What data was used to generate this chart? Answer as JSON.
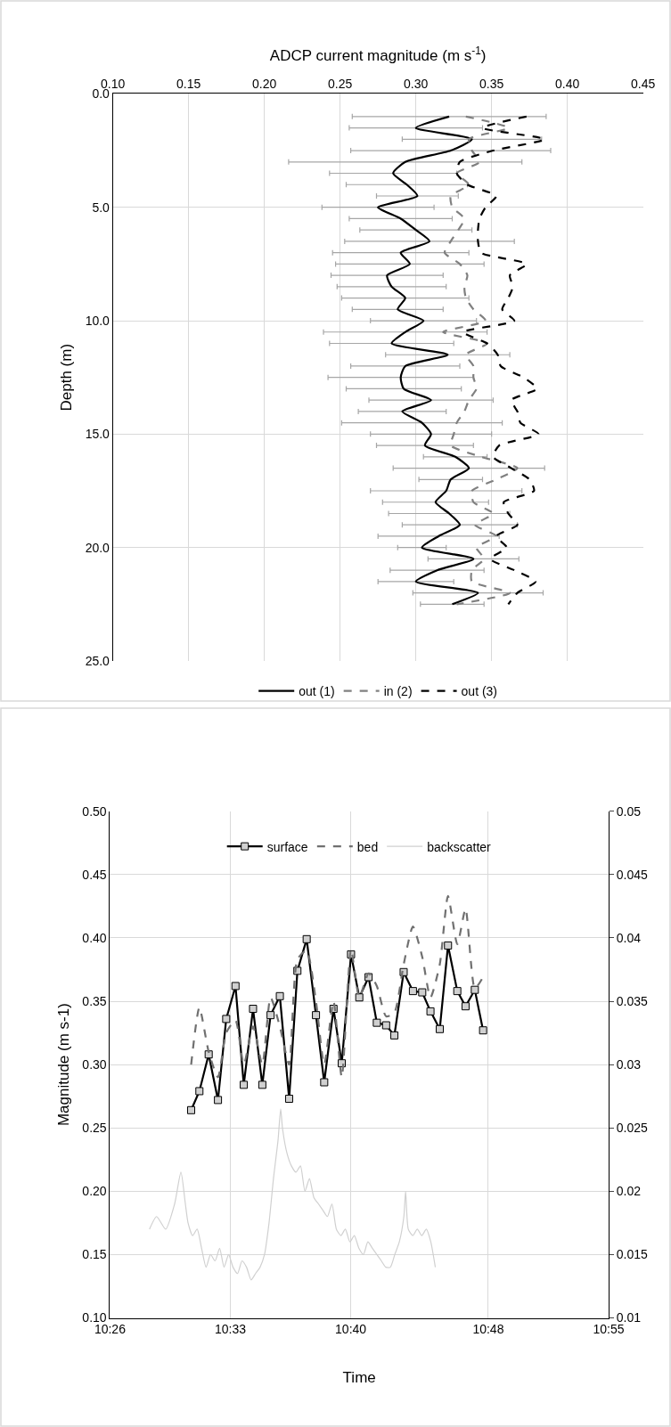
{
  "chart_data": [
    {
      "type": "line",
      "xlabel": "ADCP current magnitude (m s$^{-1}$)",
      "ylabel": "Depth (m)",
      "xlim": [
        0.1,
        0.45
      ],
      "xticks": [
        {
          "value": 0.1,
          "label": "0.10"
        },
        {
          "value": 0.15,
          "label": "0.15"
        },
        {
          "value": 0.2,
          "label": "0.20"
        },
        {
          "value": 0.25,
          "label": "0.25"
        },
        {
          "value": 0.3,
          "label": "0.30"
        },
        {
          "value": 0.35,
          "label": "0.35"
        },
        {
          "value": 0.4,
          "label": "0.40"
        },
        {
          "value": 0.45,
          "label": "0.45"
        }
      ],
      "ylim": [
        25,
        0
      ],
      "yticks": [
        {
          "value": 0,
          "label": "0.0"
        },
        {
          "value": 5,
          "label": "5.0"
        },
        {
          "value": 10,
          "label": "10.0"
        },
        {
          "value": 15,
          "label": "15.0"
        },
        {
          "value": 20,
          "label": "20.0"
        },
        {
          "value": 25,
          "label": "25.0"
        }
      ],
      "grid": true,
      "legend": "bottom",
      "marker": "none",
      "series": [
        {
          "name": "out (1)",
          "color": "#000000",
          "line_style": "solid",
          "x": [
            0.322,
            0.3,
            0.337,
            0.323,
            0.293,
            0.285,
            0.294,
            0.301,
            0.275,
            0.29,
            0.3,
            0.309,
            0.29,
            0.296,
            0.281,
            0.284,
            0.293,
            0.288,
            0.305,
            0.293,
            0.284,
            0.321,
            0.293,
            0.29,
            0.292,
            0.31,
            0.291,
            0.304,
            0.31,
            0.306,
            0.326,
            0.335,
            0.323,
            0.32,
            0.313,
            0.322,
            0.329,
            0.315,
            0.304,
            0.338,
            0.314,
            0.3,
            0.341,
            0.324
          ],
          "values": [
            1.0,
            1.5,
            2.0,
            2.5,
            3.0,
            3.5,
            4.0,
            4.5,
            5.0,
            5.5,
            6.0,
            6.5,
            7.0,
            7.5,
            8.0,
            8.5,
            9.0,
            9.5,
            10.0,
            10.5,
            11.0,
            11.5,
            12.0,
            12.5,
            13.0,
            13.5,
            14.0,
            14.5,
            15.0,
            15.5,
            16.0,
            16.5,
            17.0,
            17.5,
            18.0,
            18.5,
            19.0,
            19.5,
            20.0,
            20.5,
            21.0,
            21.5,
            22.0,
            22.5
          ],
          "xerrors": [
            0.064,
            0.044,
            0.046,
            0.066,
            0.077,
            0.042,
            0.04,
            0.027,
            0.037,
            0.034,
            0.037,
            0.056,
            0.045,
            0.049,
            0.037,
            0.036,
            0.042,
            0.03,
            0.035,
            0.054,
            0.041,
            0.041,
            0.036,
            0.048,
            0.038,
            0.041,
            0.029,
            0.053,
            0.04,
            0.032,
            0.021,
            0.05,
            0.021,
            0.05,
            0.035,
            0.04,
            0.038,
            0.04,
            0.016,
            0.03,
            0.031,
            0.025,
            0.043,
            0.021
          ]
        },
        {
          "name": "in (2)",
          "color": "#808080",
          "line_style": "dashed",
          "x": [
            0.333,
            0.361,
            0.335,
            0.337,
            0.342,
            0.327,
            0.335,
            0.323,
            0.324,
            0.332,
            0.328,
            0.323,
            0.319,
            0.329,
            0.334,
            0.332,
            0.333,
            0.338,
            0.346,
            0.318,
            0.347,
            0.333,
            0.338,
            0.338,
            0.34,
            0.335,
            0.332,
            0.327,
            0.325,
            0.323,
            0.343,
            0.367,
            0.353,
            0.337,
            0.338,
            0.351,
            0.339,
            0.353,
            0.34,
            0.345,
            0.337,
            0.337,
            0.362,
            0.327
          ],
          "values": [
            1.0,
            1.5,
            2.0,
            2.5,
            3.0,
            3.5,
            4.0,
            4.5,
            5.0,
            5.5,
            6.0,
            6.5,
            7.0,
            7.5,
            8.0,
            8.5,
            9.0,
            9.5,
            10.0,
            10.5,
            11.0,
            11.5,
            12.0,
            12.5,
            13.0,
            13.5,
            14.0,
            14.5,
            15.0,
            15.5,
            16.0,
            16.5,
            17.0,
            17.5,
            18.0,
            18.5,
            19.0,
            19.5,
            20.0,
            20.5,
            21.0,
            21.5,
            22.0,
            22.5
          ]
        },
        {
          "name": "out (3)",
          "color": "#000000",
          "line_style": "dashed",
          "x": [
            0.373,
            0.344,
            0.385,
            0.351,
            0.329,
            0.327,
            0.334,
            0.353,
            0.346,
            0.342,
            0.341,
            0.341,
            0.343,
            0.373,
            0.362,
            0.364,
            0.361,
            0.357,
            0.365,
            0.331,
            0.347,
            0.354,
            0.356,
            0.371,
            0.38,
            0.363,
            0.367,
            0.369,
            0.381,
            0.355,
            0.351,
            0.363,
            0.375,
            0.378,
            0.358,
            0.361,
            0.367,
            0.353,
            0.36,
            0.349,
            0.365,
            0.379,
            0.367,
            0.361
          ],
          "values": [
            1.0,
            1.5,
            2.0,
            2.5,
            3.0,
            3.5,
            4.0,
            4.5,
            5.0,
            5.5,
            6.0,
            6.5,
            7.0,
            7.5,
            8.0,
            8.5,
            9.0,
            9.5,
            10.0,
            10.5,
            11.0,
            11.5,
            12.0,
            12.5,
            13.0,
            13.5,
            14.0,
            14.5,
            15.0,
            15.5,
            16.0,
            16.5,
            17.0,
            17.5,
            18.0,
            18.5,
            19.0,
            19.5,
            20.0,
            20.5,
            21.0,
            21.5,
            22.0,
            22.5
          ]
        }
      ]
    },
    {
      "type": "line",
      "xlabel": "Time",
      "ylabel": "Magnitude (m s-1)",
      "xlim": [
        10.4333,
        10.9167
      ],
      "xticks": [
        {
          "value": 10.4333,
          "label": "10:26"
        },
        {
          "value": 10.55,
          "label": "10:33"
        },
        {
          "value": 10.6667,
          "label": "10:40"
        },
        {
          "value": 10.8,
          "label": "10:48"
        },
        {
          "value": 10.9167,
          "label": "10:55"
        }
      ],
      "ylim": [
        0.1,
        0.5
      ],
      "yticks": [
        {
          "value": 0.1,
          "label": "0.10"
        },
        {
          "value": 0.15,
          "label": "0.15"
        },
        {
          "value": 0.2,
          "label": "0.20"
        },
        {
          "value": 0.25,
          "label": "0.25"
        },
        {
          "value": 0.3,
          "label": "0.30"
        },
        {
          "value": 0.35,
          "label": "0.35"
        },
        {
          "value": 0.4,
          "label": "0.40"
        },
        {
          "value": 0.45,
          "label": "0.45"
        },
        {
          "value": 0.5,
          "label": "0.50"
        }
      ],
      "y2lim": [
        0.01,
        0.05
      ],
      "y2ticks": [
        0.01,
        0.015,
        0.02,
        0.025,
        0.03,
        0.035,
        0.04,
        0.045,
        0.05
      ],
      "grid": true,
      "legend": "top",
      "series": [
        {
          "name": "surface",
          "color": "#000000",
          "marker": "square",
          "line_style": "solid",
          "x": [
            10.512,
            10.52,
            10.529,
            10.538,
            10.546,
            10.555,
            10.563,
            10.572,
            10.581,
            10.589,
            10.598,
            10.607,
            10.615,
            10.624,
            10.633,
            10.641,
            10.65,
            10.658,
            10.667,
            10.675,
            10.684,
            10.692,
            10.701,
            10.709,
            10.718,
            10.727,
            10.736,
            10.744,
            10.753,
            10.761,
            10.77,
            10.778,
            10.787,
            10.795
          ],
          "values": [
            0.264,
            0.279,
            0.308,
            0.272,
            0.336,
            0.362,
            0.284,
            0.344,
            0.284,
            0.339,
            0.354,
            0.273,
            0.374,
            0.399,
            0.339,
            0.286,
            0.344,
            0.301,
            0.387,
            0.353,
            0.369,
            0.333,
            0.331,
            0.323,
            0.373,
            0.358,
            0.357,
            0.342,
            0.328,
            0.394,
            0.358,
            0.346,
            0.359,
            0.327
          ]
        },
        {
          "name": "bed",
          "color": "#707070",
          "marker": "none",
          "line_style": "dashed",
          "x": [
            10.512,
            10.52,
            10.529,
            10.538,
            10.546,
            10.555,
            10.563,
            10.572,
            10.581,
            10.589,
            10.598,
            10.607,
            10.615,
            10.624,
            10.633,
            10.641,
            10.65,
            10.658,
            10.667,
            10.675,
            10.684,
            10.692,
            10.701,
            10.709,
            10.718,
            10.727,
            10.736,
            10.744,
            10.753,
            10.761,
            10.77,
            10.778,
            10.787,
            10.795
          ],
          "values": [
            0.3,
            0.345,
            0.31,
            0.29,
            0.325,
            0.335,
            0.3,
            0.33,
            0.3,
            0.353,
            0.33,
            0.3,
            0.383,
            0.39,
            0.35,
            0.3,
            0.35,
            0.29,
            0.391,
            0.353,
            0.372,
            0.362,
            0.338,
            0.341,
            0.379,
            0.409,
            0.385,
            0.353,
            0.379,
            0.433,
            0.395,
            0.423,
            0.36,
            0.369
          ]
        },
        {
          "name": "backscatter",
          "color": "#d0d0d0",
          "marker": "none",
          "line_style": "solid",
          "axis": "y2",
          "x": [
            10.4716,
            10.4785,
            10.4873,
            10.496,
            10.5021,
            10.5064,
            10.509,
            10.5134,
            10.5178,
            10.5221,
            10.5265,
            10.5308,
            10.5352,
            10.5396,
            10.5439,
            10.5483,
            10.5526,
            10.557,
            10.5613,
            10.5657,
            10.5701,
            10.5744,
            10.5788,
            10.5831,
            10.5875,
            10.5918,
            10.5962,
            10.5988,
            10.6005,
            10.6049,
            10.6092,
            10.6136,
            10.618,
            10.6223,
            10.6267,
            10.631,
            10.6354,
            10.6397,
            10.6441,
            10.6485,
            10.6528,
            10.6572,
            10.6615,
            10.6659,
            10.6702,
            10.6746,
            10.679,
            10.6833,
            10.6877,
            10.692,
            10.6964,
            10.7007,
            10.7051,
            10.7094,
            10.7138,
            10.7182,
            10.7199,
            10.7225,
            10.7269,
            10.7312,
            10.7356,
            10.74,
            10.7443,
            10.7487
          ],
          "values": [
            0.017,
            0.018,
            0.017,
            0.019,
            0.0215,
            0.019,
            0.0175,
            0.0165,
            0.017,
            0.0155,
            0.014,
            0.015,
            0.0145,
            0.0155,
            0.014,
            0.015,
            0.014,
            0.0135,
            0.0145,
            0.014,
            0.013,
            0.0135,
            0.014,
            0.015,
            0.0175,
            0.021,
            0.024,
            0.0265,
            0.025,
            0.023,
            0.022,
            0.0215,
            0.022,
            0.02,
            0.021,
            0.0195,
            0.019,
            0.0185,
            0.018,
            0.019,
            0.017,
            0.0165,
            0.017,
            0.016,
            0.0165,
            0.0155,
            0.015,
            0.016,
            0.0155,
            0.015,
            0.0145,
            0.014,
            0.014,
            0.015,
            0.016,
            0.018,
            0.02,
            0.017,
            0.0165,
            0.017,
            0.0165,
            0.017,
            0.016,
            0.014
          ]
        }
      ]
    }
  ]
}
